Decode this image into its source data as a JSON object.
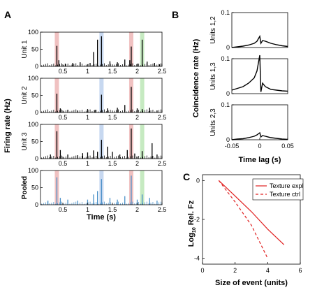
{
  "panels": {
    "a": {
      "letter": "A"
    },
    "b": {
      "letter": "B"
    },
    "c": {
      "letter": "C"
    }
  },
  "chart_data": [
    {
      "id": "A",
      "type": "bar",
      "title": "",
      "ylabel": "Firing rate (Hz)",
      "xlabel": "Time (s)",
      "xlim": [
        0.05,
        2.5
      ],
      "ylim": [
        0,
        100
      ],
      "yticks": [
        0,
        50,
        100
      ],
      "xticks": [
        0.5,
        1,
        1.5,
        2,
        2.5
      ],
      "highlights": [
        {
          "t": 0.38,
          "color": "#e8a0a0"
        },
        {
          "t": 1.28,
          "color": "#a9c3e8"
        },
        {
          "t": 1.88,
          "color": "#e8a0a0"
        },
        {
          "t": 2.1,
          "color": "#a8dea0"
        }
      ],
      "subplots": [
        {
          "label": "Unit 1",
          "color": "#000000",
          "spikes": [
            [
              0.38,
              60
            ],
            [
              0.42,
              18
            ],
            [
              0.55,
              8
            ],
            [
              0.7,
              10
            ],
            [
              0.85,
              12
            ],
            [
              1.05,
              10
            ],
            [
              1.12,
              42
            ],
            [
              1.2,
              78
            ],
            [
              1.28,
              88
            ],
            [
              1.45,
              15
            ],
            [
              1.6,
              12
            ],
            [
              1.75,
              20
            ],
            [
              1.85,
              18
            ],
            [
              1.88,
              58
            ],
            [
              2.0,
              8
            ],
            [
              2.1,
              78
            ],
            [
              2.2,
              14
            ],
            [
              2.35,
              10
            ],
            [
              2.45,
              6
            ]
          ]
        },
        {
          "label": "Unit 2",
          "color": "#000000",
          "spikes": [
            [
              0.38,
              55
            ],
            [
              0.45,
              12
            ],
            [
              0.6,
              8
            ],
            [
              0.8,
              6
            ],
            [
              1.0,
              10
            ],
            [
              1.15,
              8
            ],
            [
              1.28,
              52
            ],
            [
              1.4,
              12
            ],
            [
              1.6,
              14
            ],
            [
              1.75,
              22
            ],
            [
              1.88,
              75
            ],
            [
              2.0,
              12
            ],
            [
              2.1,
              10
            ],
            [
              2.25,
              14
            ],
            [
              2.4,
              6
            ]
          ]
        },
        {
          "label": "Unit 3",
          "color": "#000000",
          "spikes": [
            [
              0.25,
              12
            ],
            [
              0.38,
              80
            ],
            [
              0.45,
              25
            ],
            [
              0.6,
              12
            ],
            [
              0.8,
              10
            ],
            [
              0.9,
              16
            ],
            [
              1.0,
              18
            ],
            [
              1.12,
              24
            ],
            [
              1.2,
              20
            ],
            [
              1.28,
              55
            ],
            [
              1.4,
              35
            ],
            [
              1.5,
              20
            ],
            [
              1.65,
              12
            ],
            [
              1.8,
              25
            ],
            [
              1.88,
              88
            ],
            [
              1.95,
              15
            ],
            [
              2.1,
              22
            ],
            [
              2.3,
              45
            ],
            [
              2.4,
              12
            ]
          ]
        },
        {
          "label": "Pooled",
          "color": "#4a90c8",
          "spikes": [
            [
              0.2,
              12
            ],
            [
              0.38,
              80
            ],
            [
              0.45,
              20
            ],
            [
              0.6,
              15
            ],
            [
              0.8,
              12
            ],
            [
              1.0,
              15
            ],
            [
              1.12,
              30
            ],
            [
              1.2,
              40
            ],
            [
              1.28,
              75
            ],
            [
              1.45,
              20
            ],
            [
              1.6,
              15
            ],
            [
              1.75,
              25
            ],
            [
              1.88,
              85
            ],
            [
              2.0,
              15
            ],
            [
              2.1,
              30
            ],
            [
              2.25,
              20
            ],
            [
              2.4,
              12
            ]
          ]
        }
      ]
    },
    {
      "id": "B",
      "type": "line",
      "title": "",
      "ylabel": "Coincidence rate (Hz)",
      "xlabel": "Time lag (s)",
      "xlim": [
        -0.05,
        0.05
      ],
      "ylim": [
        0,
        0.1
      ],
      "xticks": [
        -0.05,
        0,
        0.05
      ],
      "yticks": [
        0,
        0.1
      ],
      "subplots": [
        {
          "label": "Units 1,2",
          "points": [
            [
              -0.05,
              0.0
            ],
            [
              -0.04,
              0.002
            ],
            [
              -0.03,
              0.004
            ],
            [
              -0.02,
              0.007
            ],
            [
              -0.01,
              0.012
            ],
            [
              -0.005,
              0.018
            ],
            [
              0.0,
              0.032
            ],
            [
              0.002,
              0.012
            ],
            [
              0.005,
              0.02
            ],
            [
              0.01,
              0.018
            ],
            [
              0.02,
              0.012
            ],
            [
              0.03,
              0.008
            ],
            [
              0.04,
              0.005
            ],
            [
              0.05,
              0.003
            ]
          ]
        },
        {
          "label": "Units 1,3",
          "points": [
            [
              -0.05,
              0.01
            ],
            [
              -0.04,
              0.015
            ],
            [
              -0.03,
              0.02
            ],
            [
              -0.02,
              0.03
            ],
            [
              -0.01,
              0.045
            ],
            [
              -0.005,
              0.065
            ],
            [
              0.0,
              0.11
            ],
            [
              0.002,
              0.005
            ],
            [
              0.005,
              0.03
            ],
            [
              0.01,
              0.02
            ],
            [
              0.02,
              0.012
            ],
            [
              0.03,
              0.01
            ],
            [
              0.04,
              0.008
            ],
            [
              0.05,
              0.007
            ]
          ]
        },
        {
          "label": "Units 2,3",
          "points": [
            [
              -0.05,
              0.0
            ],
            [
              -0.04,
              0.002
            ],
            [
              -0.03,
              0.003
            ],
            [
              -0.02,
              0.006
            ],
            [
              -0.01,
              0.01
            ],
            [
              -0.005,
              0.014
            ],
            [
              0.0,
              0.02
            ],
            [
              0.002,
              0.008
            ],
            [
              0.005,
              0.012
            ],
            [
              0.01,
              0.01
            ],
            [
              0.02,
              0.006
            ],
            [
              0.03,
              0.004
            ],
            [
              0.04,
              0.002
            ],
            [
              0.05,
              0.001
            ]
          ]
        }
      ]
    },
    {
      "id": "C",
      "type": "line",
      "title": "",
      "xlabel": "Size of event (units)",
      "ylabel_base": "Log",
      "ylabel_sub": "10",
      "ylabel_rest": " Rel. Fz",
      "xlim": [
        0,
        6
      ],
      "ylim": [
        -4.3,
        0.3
      ],
      "xticks": [
        0,
        2,
        4,
        6
      ],
      "yticks": [
        0,
        -2,
        -4
      ],
      "legend_position": "top-right",
      "series": [
        {
          "name": "Texture expl",
          "color": "#e02020",
          "dash": "solid",
          "x": [
            1,
            2,
            3,
            4,
            5
          ],
          "y": [
            0,
            -0.8,
            -1.6,
            -2.5,
            -3.3
          ]
        },
        {
          "name": "Texture ctrl",
          "color": "#e02020",
          "dash": "dashed",
          "x": [
            1,
            2,
            3,
            4
          ],
          "y": [
            0,
            -1.1,
            -2.3,
            -4.0
          ]
        }
      ]
    }
  ]
}
